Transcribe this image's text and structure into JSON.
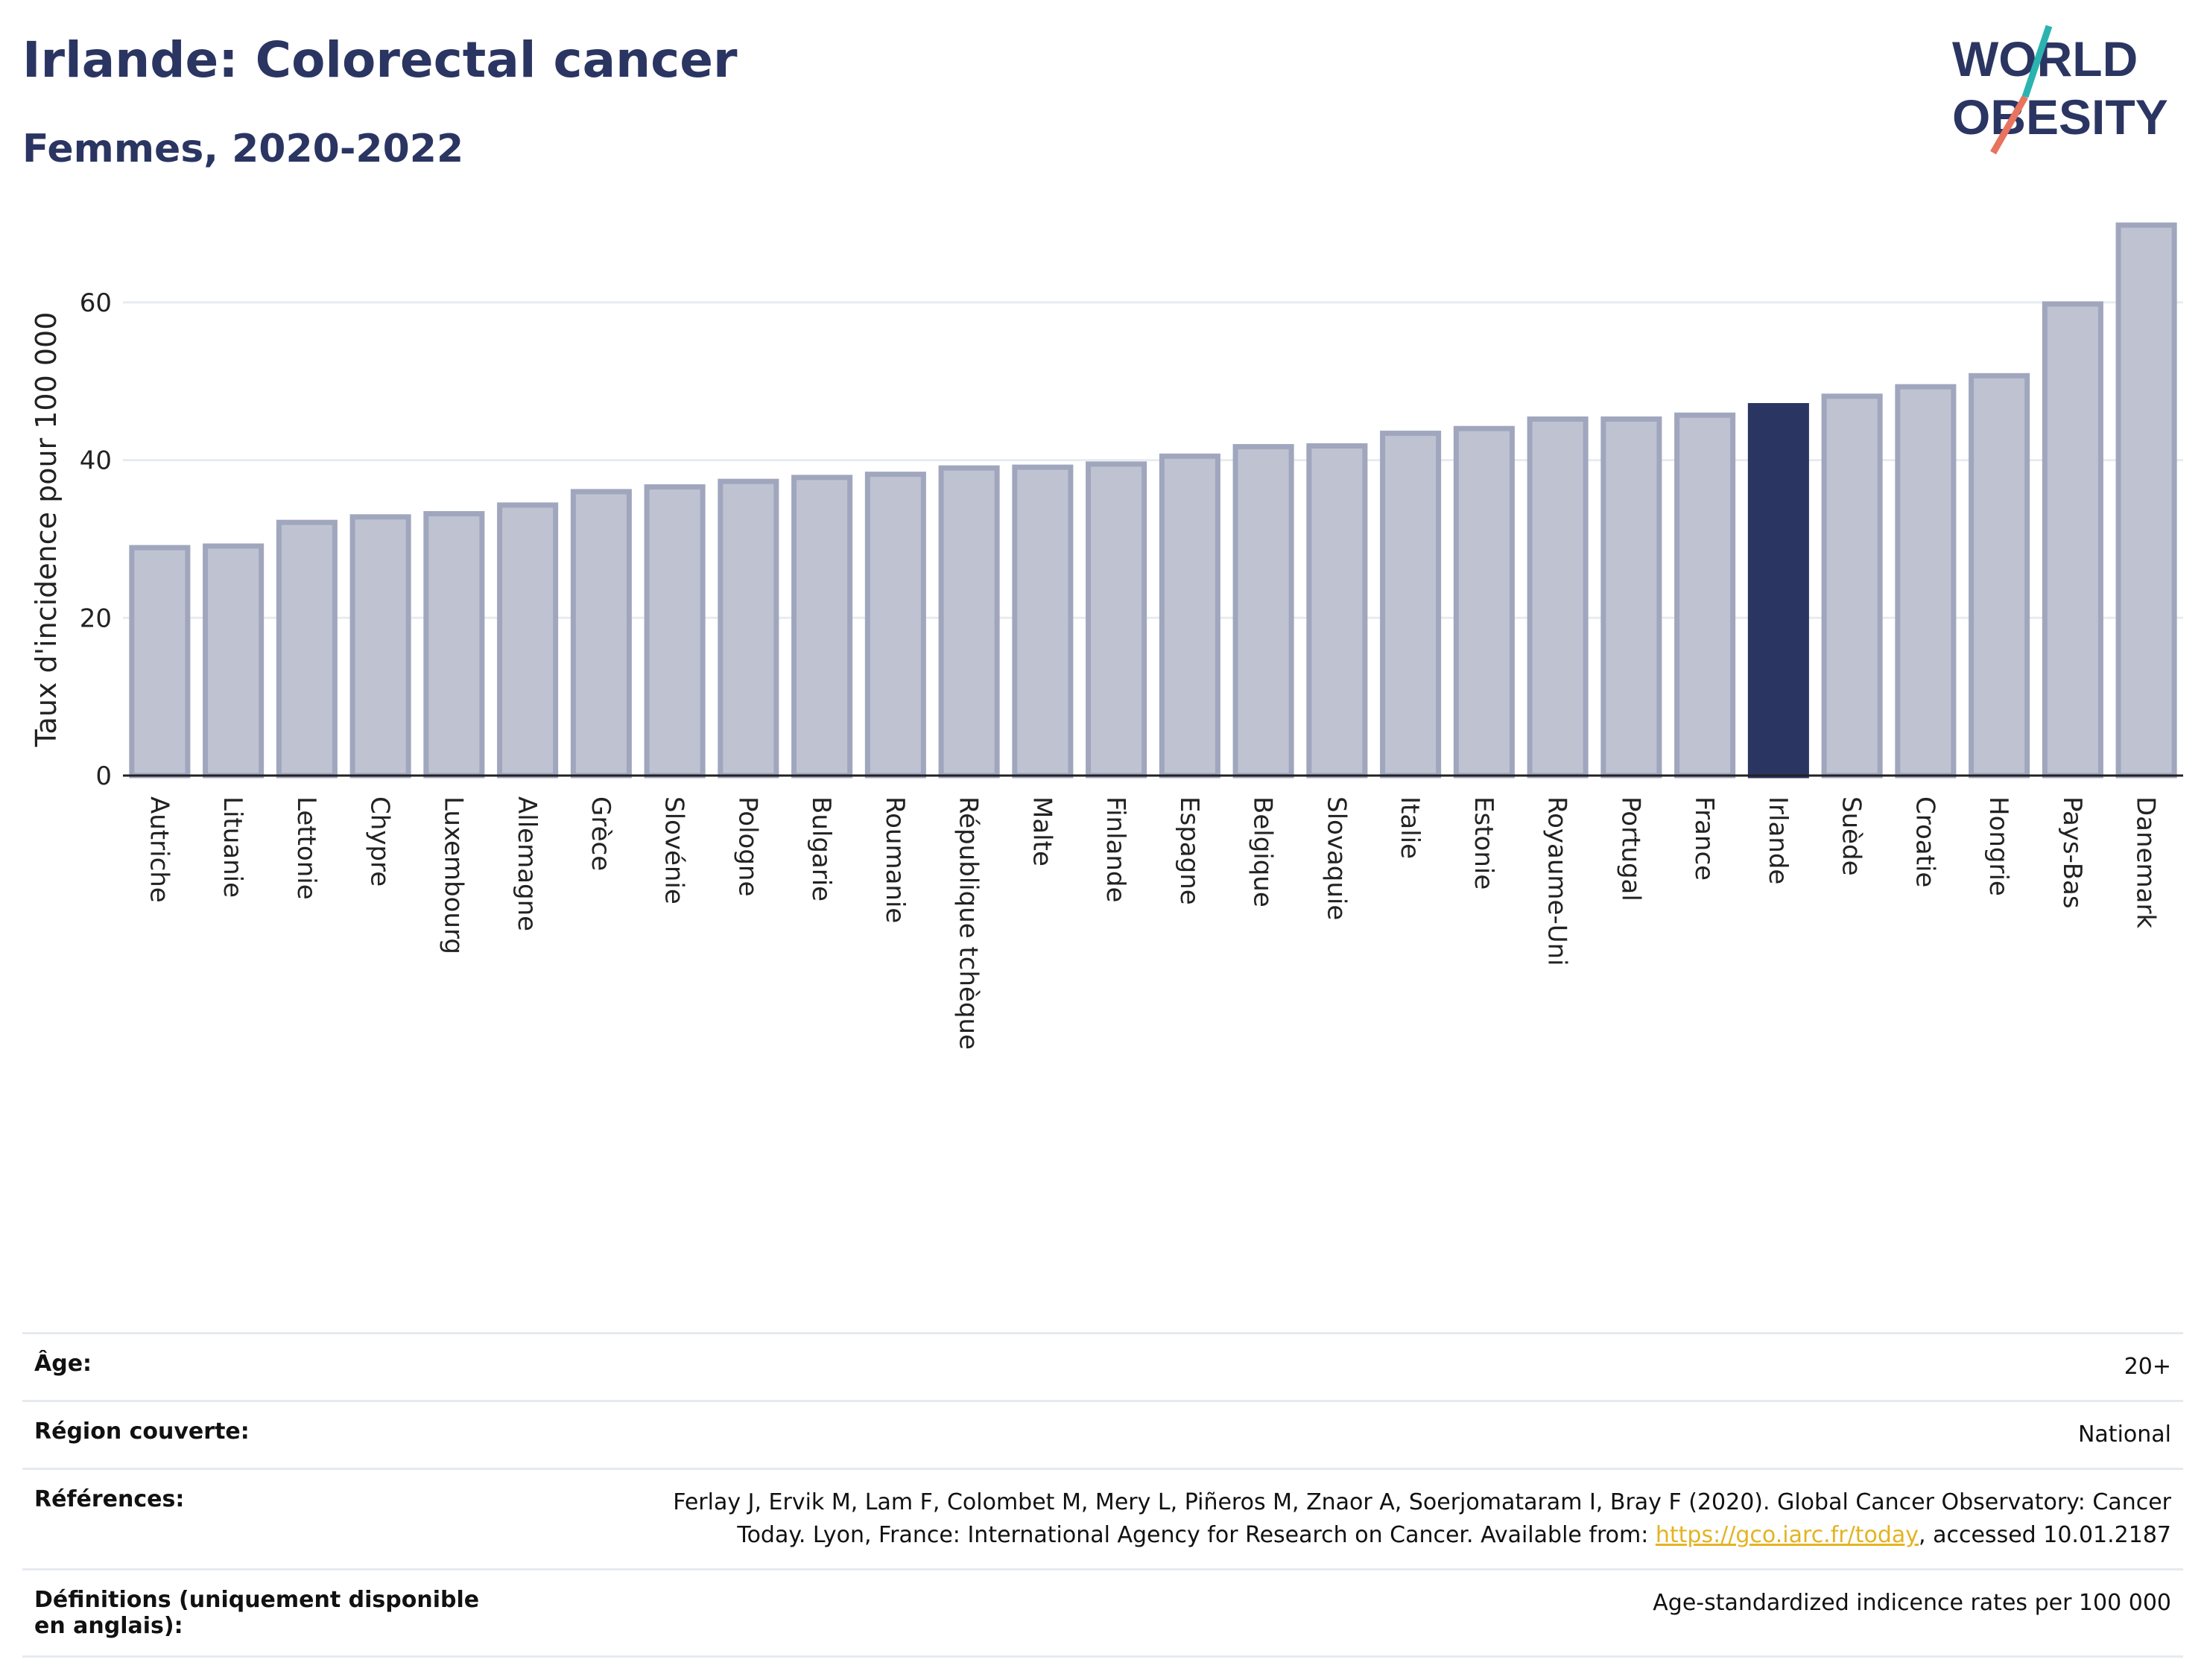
{
  "header": {
    "title": "Irlande: Colorectal cancer",
    "subtitle": "Femmes, 2020-2022",
    "logo": {
      "line1": "WORLD",
      "line2": "OBESITY",
      "slash_colors": [
        "#2bb3b1",
        "#e8735f"
      ]
    }
  },
  "colors": {
    "bar": "#bfc3d1",
    "bar_border": "#a0a6bd",
    "highlight": "#2b3562",
    "grid": "#e8ebf1",
    "axis": "#222222"
  },
  "chart_data": {
    "type": "bar",
    "title": "Irlande: Colorectal cancer",
    "subtitle": "Femmes, 2020-2022",
    "xlabel": "",
    "ylabel": "Taux d'incidence pour 100 000",
    "ylim": [
      0,
      70
    ],
    "yticks": [
      0,
      20,
      40,
      60
    ],
    "grid": true,
    "highlight": "Irlande",
    "categories": [
      "Autriche",
      "Lituanie",
      "Lettonie",
      "Chypre",
      "Luxembourg",
      "Allemagne",
      "Grèce",
      "Slovénie",
      "Pologne",
      "Bulgarie",
      "Roumanie",
      "République tchèque",
      "Malte",
      "Finlande",
      "Espagne",
      "Belgique",
      "Slovaquie",
      "Italie",
      "Estonie",
      "Royaume-Uni",
      "Portugal",
      "France",
      "Irlande",
      "Suède",
      "Croatie",
      "Hongrie",
      "Pays-Bas",
      "Danemark"
    ],
    "values": [
      28.9,
      29.1,
      32.1,
      32.8,
      33.2,
      34.3,
      36.0,
      36.6,
      37.3,
      37.8,
      38.2,
      39.0,
      39.1,
      39.5,
      40.5,
      41.7,
      41.8,
      43.4,
      44.0,
      45.2,
      45.2,
      45.7,
      46.9,
      48.1,
      49.3,
      50.7,
      59.8,
      69.8
    ]
  },
  "meta": {
    "age_label": "Âge:",
    "age_value": "20+",
    "region_label": "Région couverte:",
    "region_value": "National",
    "refs_label": "Références:",
    "refs_line1": "Ferlay J, Ervik M, Lam F, Colombet M, Mery L, Piñeros M, Znaor A, Soerjomataram I, Bray F (2020). Global Cancer Observatory: Cancer",
    "refs_line2_pre": "Today. Lyon, France: International Agency for Research on Cancer. Available from: ",
    "refs_link": "https://gco.iarc.fr/today",
    "refs_line2_post": ", accessed 10.01.2187",
    "def_label": "Définitions (uniquement disponible en anglais):",
    "def_value": "Age-standardized indicence rates per 100 000"
  }
}
